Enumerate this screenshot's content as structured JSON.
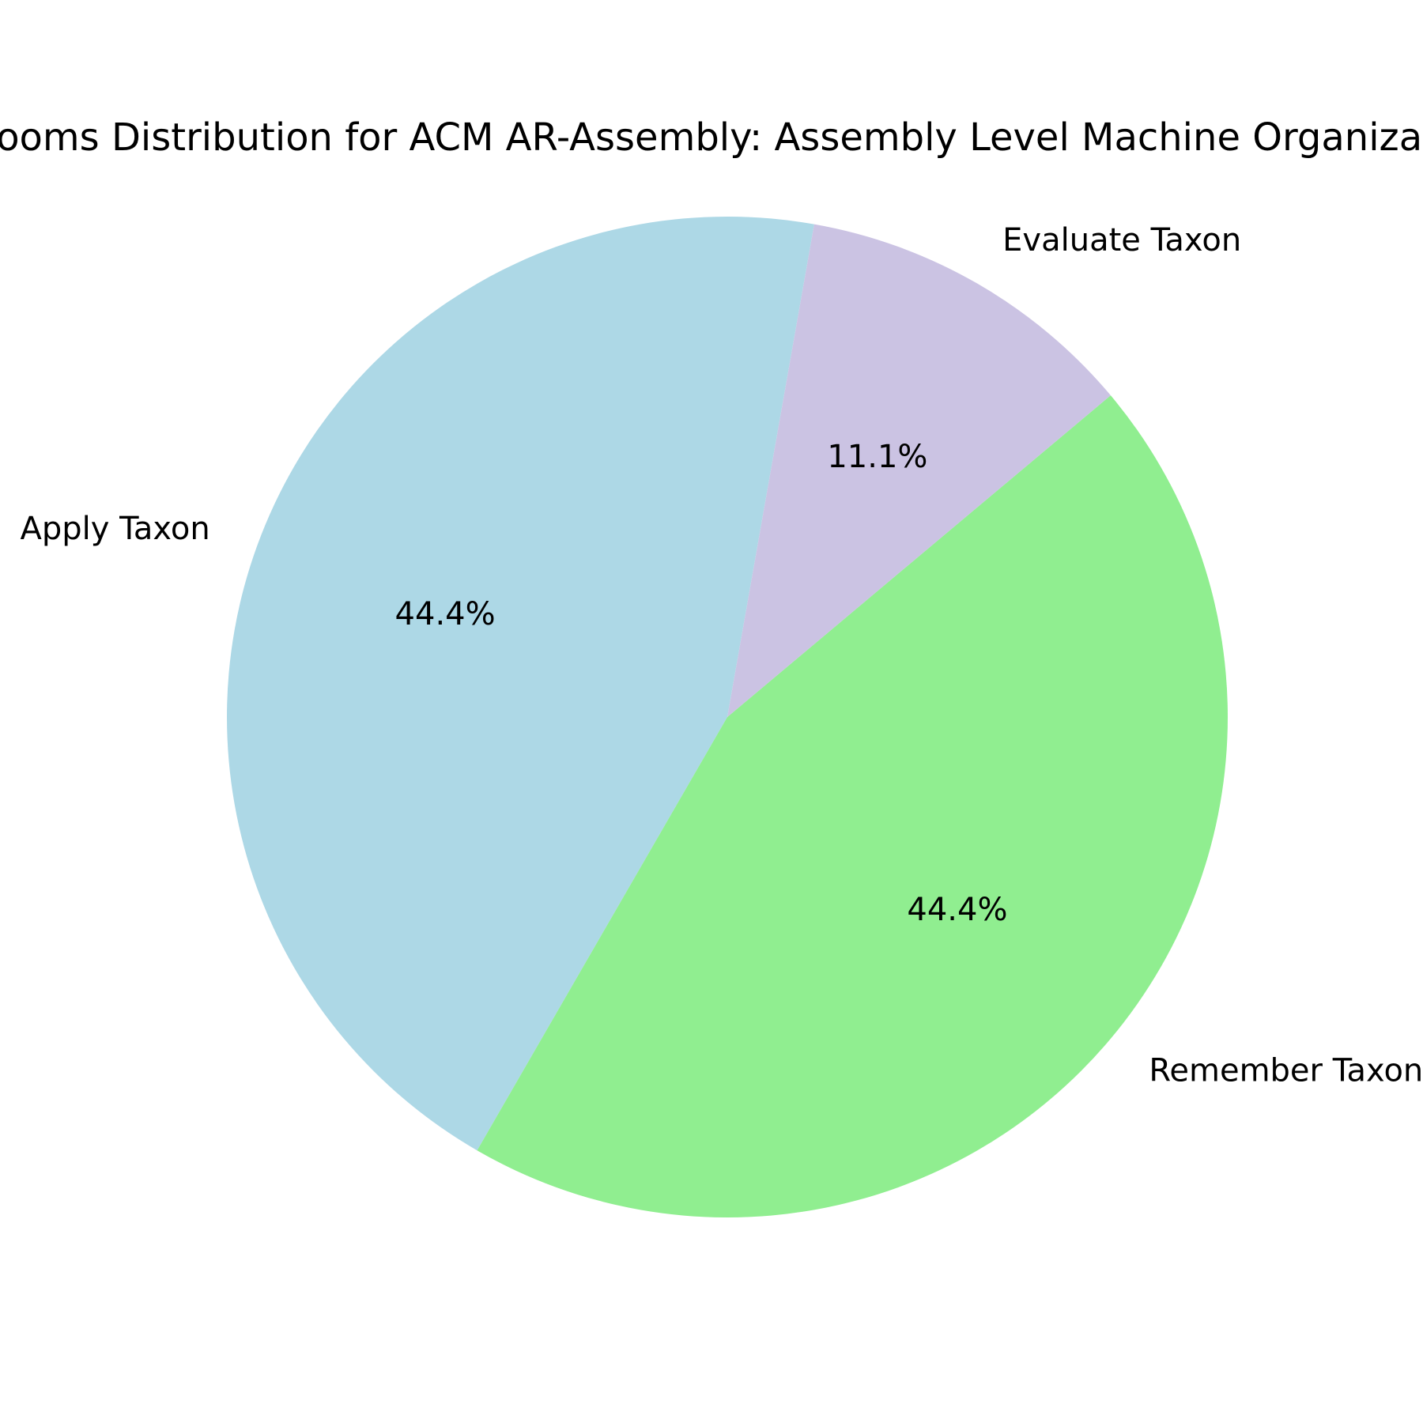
{
  "chart_data": {
    "type": "pie",
    "title": "Blooms Distribution for ACM AR-Assembly: Assembly Level Machine Organization",
    "categories": [
      "Apply Taxon",
      "Remember Taxon",
      "Evaluate Taxon"
    ],
    "values": [
      44.4,
      44.4,
      11.1
    ],
    "value_labels": [
      "44.4%",
      "44.4%",
      "11.1%"
    ],
    "colors": [
      "#add8e6",
      "#90ee90",
      "#cbc3e3"
    ],
    "start_angle_deg": 80,
    "direction": "counterclockwise",
    "legend": "none"
  }
}
